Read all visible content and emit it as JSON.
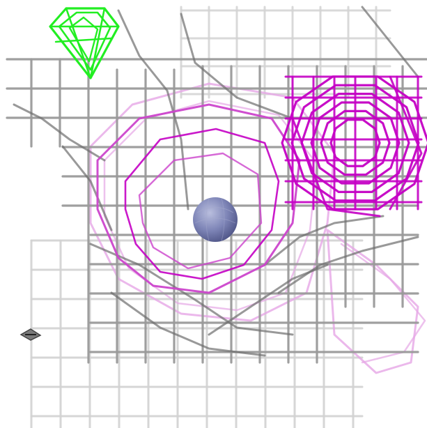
{
  "scene": {
    "background_color": "#ffffff",
    "colors": {
      "grey_mesh_dark": "#6e6e6e",
      "grey_mesh_mid": "#9a9a9a",
      "grey_mesh_light": "#d2d2d2",
      "magenta_mesh_bright": "#c400c4",
      "magenta_mesh_mid": "#cc44cc",
      "magenta_mesh_light": "#e6a6e6",
      "green_mesh": "#22ee22",
      "atom_sphere": "#7f86b8",
      "small_marker": "#555555"
    },
    "icons": [
      "grey-density-mesh",
      "magenta-density-mesh",
      "green-density-mesh",
      "atom-sphere",
      "small-marker-icon"
    ]
  }
}
